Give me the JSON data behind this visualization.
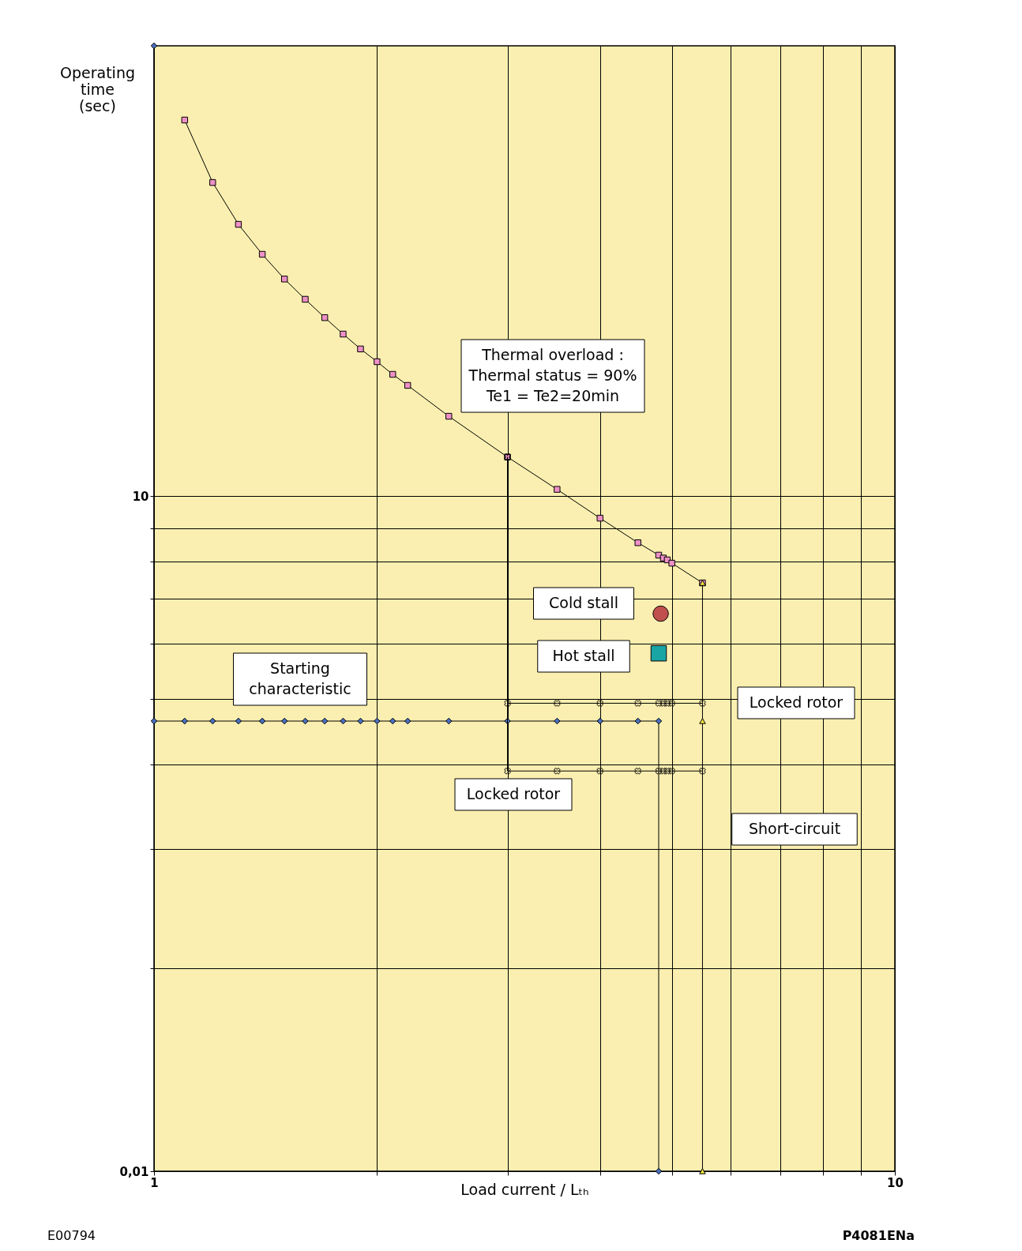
{
  "chart_data": {
    "type": "line",
    "xlabel": "Load current / Lₜₕ",
    "ylabel": "Operating\ntime\n(sec)",
    "log": "xy",
    "grid": true,
    "legend": false,
    "xlim": [
      1,
      10
    ],
    "ylim": [
      0.01,
      1000
    ],
    "xticks": [
      1,
      {
        "value": 2,
        "label": null
      },
      {
        "value": 3,
        "label": null
      },
      {
        "value": 4,
        "label": null
      },
      {
        "value": 5,
        "label": null
      },
      {
        "value": 6,
        "label": null
      },
      {
        "value": 7,
        "label": null
      },
      {
        "value": 8,
        "label": null
      },
      {
        "value": 9,
        "label": null
      },
      10
    ],
    "yticks": [
      {
        "value": 0.01,
        "label": "0,01"
      },
      {
        "value": 0.08,
        "label": null
      },
      {
        "value": 0.27,
        "label": null
      },
      {
        "value": 0.64,
        "label": null
      },
      {
        "value": 1.25,
        "label": null
      },
      {
        "value": 2.2,
        "label": null
      },
      {
        "value": 3.5,
        "label": null
      },
      {
        "value": 5.1,
        "label": null
      },
      {
        "value": 7.2,
        "label": null
      },
      10
    ],
    "series": [
      {
        "name": "Thermal overload :\nThermal status = 90%\nTe1 = Te2=20min",
        "marker": "square",
        "color": "#ee90c6",
        "x": [
          1.1,
          1.2,
          1.3,
          1.4,
          1.5,
          1.6,
          1.7,
          1.8,
          1.9,
          2.0,
          2.1,
          2.2,
          2.5,
          3.0,
          3.5,
          4.0,
          4.5,
          4.8,
          4.87,
          4.93,
          5.0,
          5.5
        ],
        "values": [
          468,
          247,
          161,
          118.5,
          92,
          74.8,
          62,
          52.4,
          45,
          39.5,
          34.7,
          31,
          22.6,
          14.9,
          10.7,
          7.97,
          6.2,
          5.46,
          5.3,
          5.2,
          5.03,
          4.11
        ]
      },
      {
        "name": "Starting\ncharacteristic",
        "marker": "diamond",
        "color": "#4a6fc0",
        "x": [
          1,
          1,
          1.1,
          1.2,
          1.3,
          1.4,
          1.5,
          1.6,
          1.7,
          1.8,
          1.9,
          2.0,
          2.1,
          2.2,
          2.5,
          3.0,
          3.5,
          4.0,
          4.5,
          4.8,
          4.8
        ],
        "values": [
          1000,
          1,
          1,
          1,
          1,
          1,
          1,
          1,
          1,
          1,
          1,
          1,
          1,
          1,
          1,
          1,
          1,
          1,
          1,
          1,
          0.01
        ]
      },
      {
        "name": "Locked rotor",
        "marker": "cross",
        "color": "#000000",
        "x": [
          3,
          3,
          3.5,
          4,
          4.5,
          4.8,
          4.87,
          4.93,
          5,
          5.5
        ],
        "values": [
          14.9,
          1.2,
          1.2,
          1.2,
          1.2,
          1.2,
          1.2,
          1.2,
          1.2,
          1.2
        ]
      },
      {
        "name": "Locked rotor",
        "marker": "cross",
        "color": "#000000",
        "x": [
          3,
          3,
          3.5,
          4,
          4.5,
          4.8,
          4.87,
          4.93,
          5,
          5.5
        ],
        "values": [
          14.9,
          0.6,
          0.6,
          0.6,
          0.6,
          0.6,
          0.6,
          0.6,
          0.6,
          0.6
        ]
      },
      {
        "name": "Short-circuit",
        "marker": "triangle",
        "color": "#f5e642",
        "x": [
          5.5,
          5.5,
          5.5
        ],
        "values": [
          4.11,
          1,
          0.01
        ]
      },
      {
        "name": "Cold stall",
        "type": "scatter",
        "marker": "circle",
        "color": "#c0504d",
        "x": [
          4.83
        ],
        "values": [
          3.0
        ]
      },
      {
        "name": "Hot stall",
        "type": "scatter",
        "marker": "square",
        "color": "#1aa5a5",
        "x": [
          4.8
        ],
        "values": [
          2.0
        ]
      }
    ],
    "annotations": [
      "E00794",
      "P4081ENa"
    ]
  }
}
